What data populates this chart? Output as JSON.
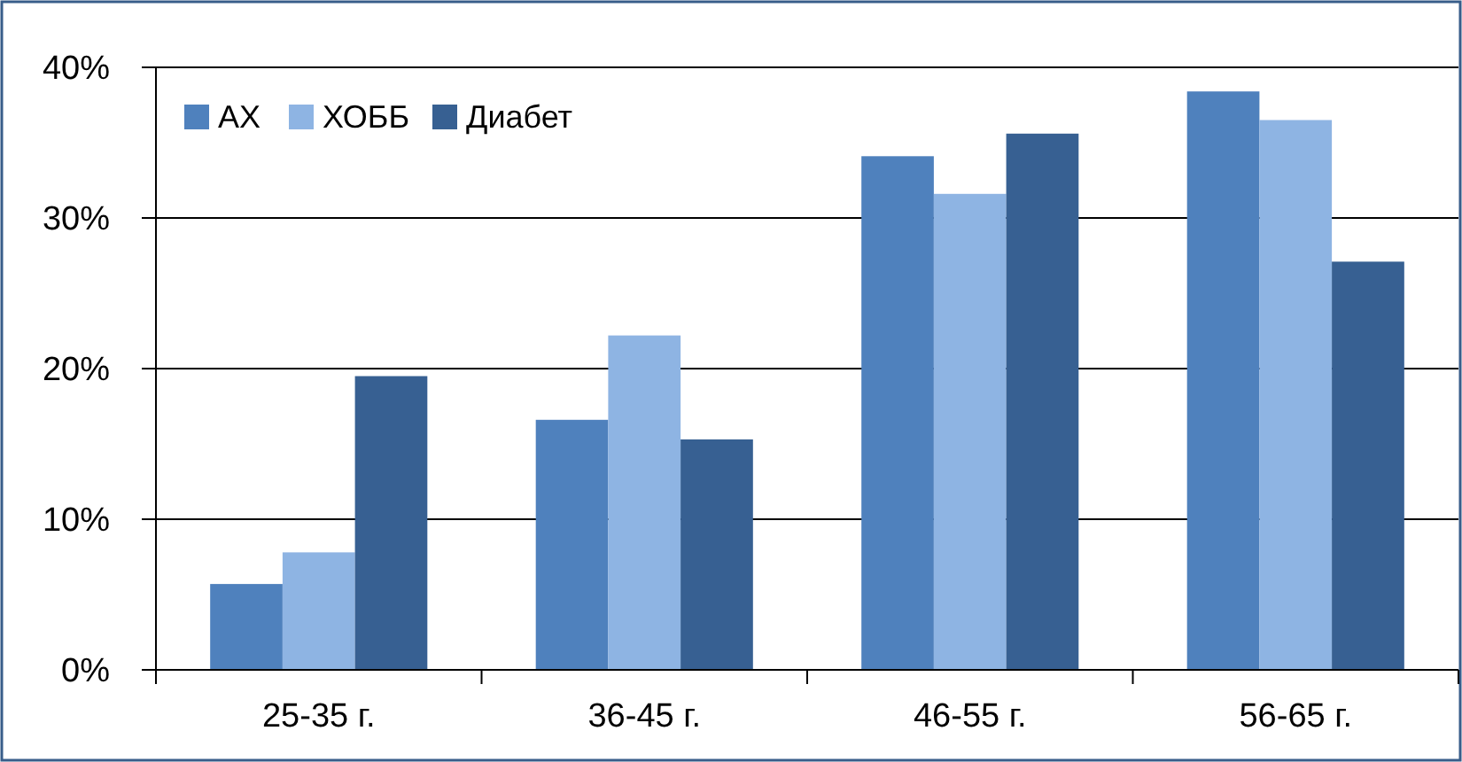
{
  "chart_data": {
    "type": "bar",
    "categories": [
      "25-35 г.",
      "36-45 г.",
      "46-55 г.",
      "56-65 г."
    ],
    "series": [
      {
        "name": "АХ",
        "color": "#4f81bd",
        "values": [
          5.7,
          16.6,
          34.1,
          38.4
        ]
      },
      {
        "name": "ХОББ",
        "color": "#8eb4e3",
        "values": [
          7.8,
          22.2,
          31.6,
          36.5
        ]
      },
      {
        "name": "Диабет",
        "color": "#376092",
        "values": [
          19.5,
          15.3,
          35.6,
          27.1
        ]
      }
    ],
    "ylim": [
      0,
      40
    ],
    "yticks": [
      {
        "value": 0,
        "label": "0%"
      },
      {
        "value": 10,
        "label": "10%"
      },
      {
        "value": 20,
        "label": "20%"
      },
      {
        "value": 30,
        "label": "30%"
      },
      {
        "value": 40,
        "label": "40%"
      }
    ],
    "grid": "y",
    "legend": "top left"
  }
}
